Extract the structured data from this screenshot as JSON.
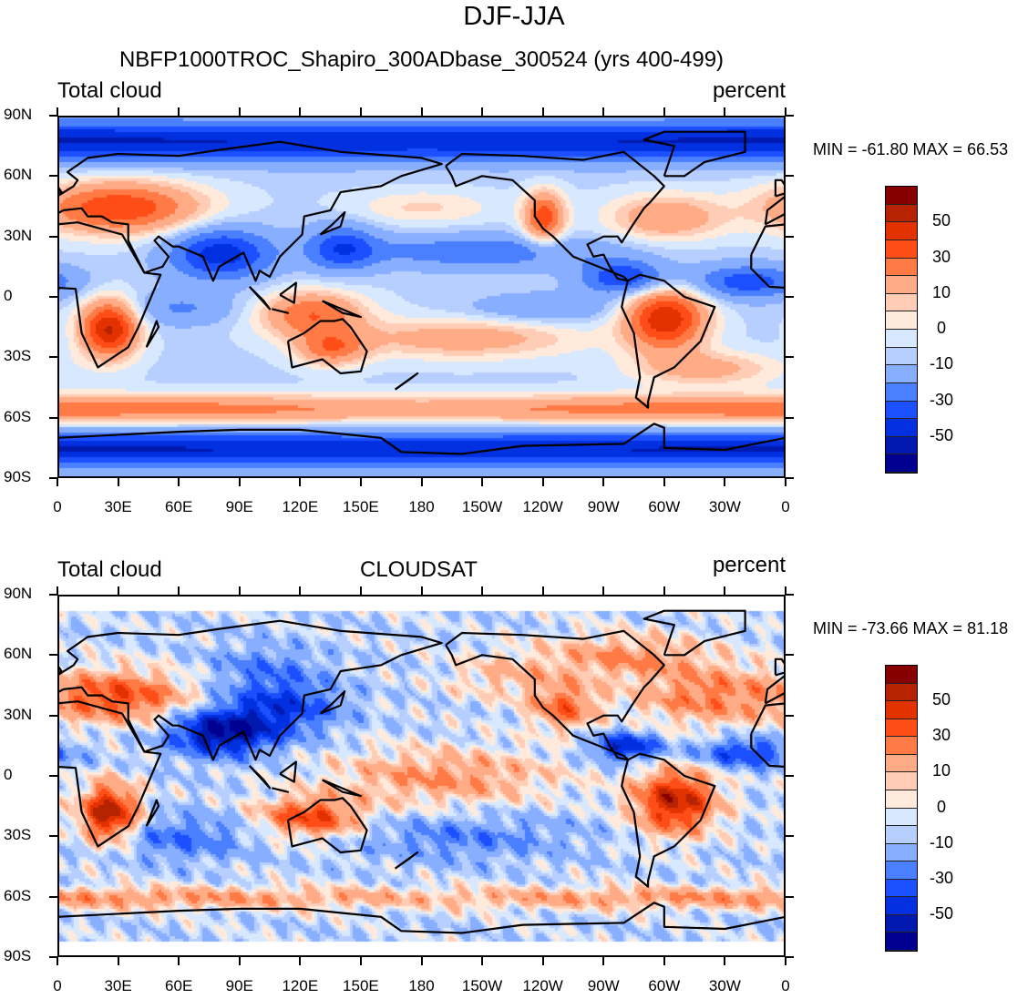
{
  "title": "DJF-JJA",
  "panels": [
    {
      "left_title": "Total cloud",
      "center_title": "NBFP1000TROC_Shapiro_300ADbase_300524 (yrs 400-499)",
      "right_title": "percent",
      "minmax": "MIN = -61.80 MAX =  66.53",
      "min": -61.8,
      "max": 66.53,
      "data_lat_range": [
        -90,
        90
      ]
    },
    {
      "left_title": "Total cloud",
      "center_title": "CLOUDSAT",
      "right_title": "percent",
      "minmax": "MIN = -73.66 MAX =  81.18",
      "min": -73.66,
      "max": 81.18,
      "data_lat_range": [
        -82,
        82
      ]
    }
  ],
  "lat_ticks": [
    "90N",
    "60N",
    "30N",
    "0",
    "30S",
    "60S",
    "90S"
  ],
  "lon_ticks": [
    "0",
    "30E",
    "60E",
    "90E",
    "120E",
    "150E",
    "180",
    "150W",
    "120W",
    "90W",
    "60W",
    "30W",
    "0"
  ],
  "colorbar": {
    "levels": [
      60,
      50,
      40,
      30,
      20,
      10,
      5,
      0,
      -5,
      -10,
      -20,
      -30,
      -40,
      -50,
      -60
    ],
    "labels": [
      "50",
      "30",
      "10",
      "0",
      "-10",
      "-30",
      "-50"
    ],
    "colors": [
      "#870000",
      "#b52300",
      "#e23200",
      "#ff4d17",
      "#ff7a45",
      "#ffab86",
      "#ffcdb6",
      "#ffeadc",
      "#d8e9ff",
      "#b7cfff",
      "#88aeff",
      "#4a7fff",
      "#1c4fff",
      "#0030e0",
      "#0019ae",
      "#000090"
    ]
  }
}
